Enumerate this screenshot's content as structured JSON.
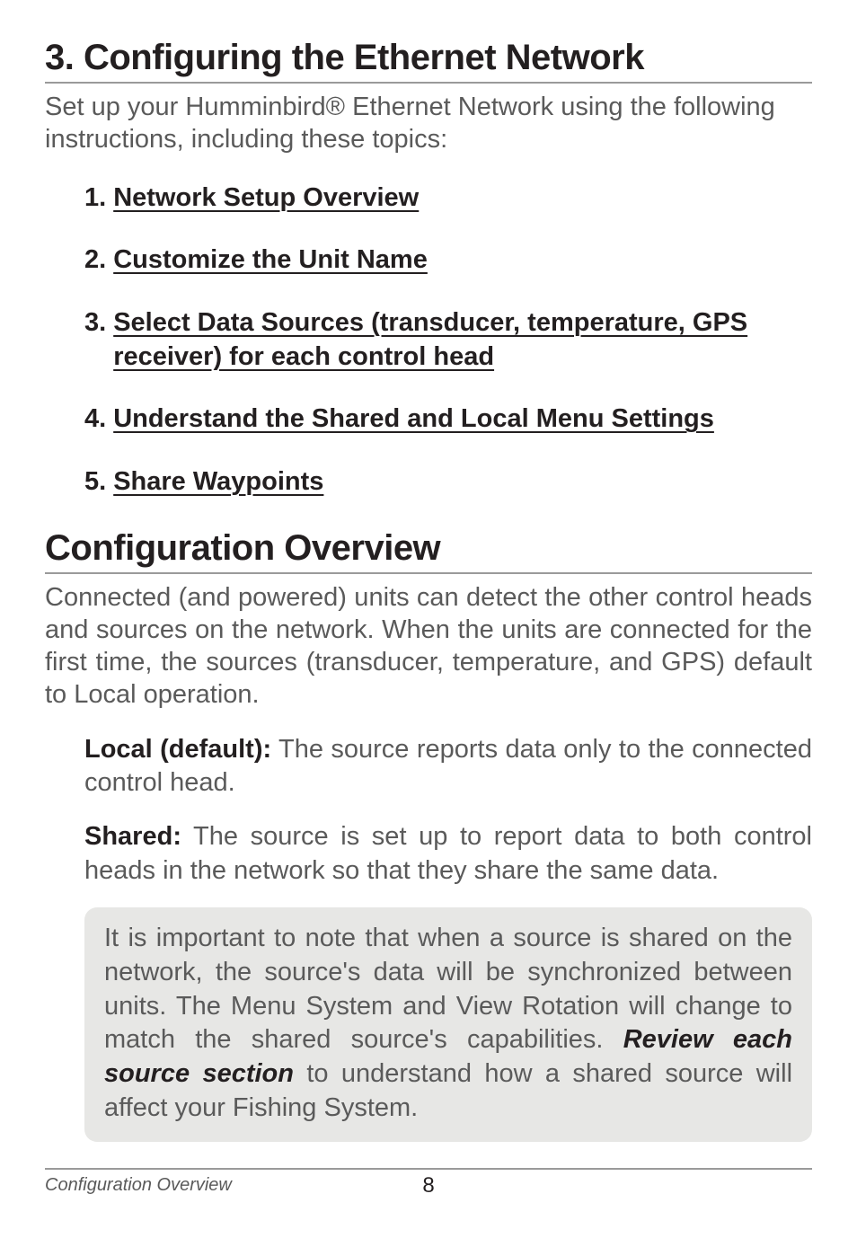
{
  "section": {
    "title": "3. Configuring the Ethernet Network",
    "intro": "Set up your Humminbird® Ethernet Network using the following instructions, including these topics:"
  },
  "toc": [
    {
      "num": "1.",
      "text": "Network Setup Overview"
    },
    {
      "num": "2.",
      "text": "Customize the Unit Name"
    },
    {
      "num": "3.",
      "text": "Select Data Sources (transducer, temperature, GPS receiver) for each control head"
    },
    {
      "num": "4.",
      "text": "Understand the Shared and Local Menu Settings"
    },
    {
      "num": "5.",
      "text": "Share Waypoints"
    }
  ],
  "overview": {
    "title": "Configuration Overview",
    "body": "Connected (and powered) units can detect the other control heads and sources on the network. When the units are connected for the first time, the sources (transducer, temperature, and GPS) default to Local operation.",
    "defs": {
      "local_term": "Local (default):",
      "local_body": " The source reports data only to the connected control head.",
      "shared_term": "Shared:",
      "shared_body": " The source is set up to report data to both control heads in the network so that they share the same data."
    },
    "callout_pre": "It is important to note that when a source is shared on the network, the source's data will be synchronized between units. The Menu System and View Rotation will change to match the shared source's capabilities. ",
    "callout_emph": "Review each source section",
    "callout_post": " to understand how a shared source will affect your Fishing System."
  },
  "footer": {
    "section_label": "Configuration Overview",
    "page": "8"
  }
}
